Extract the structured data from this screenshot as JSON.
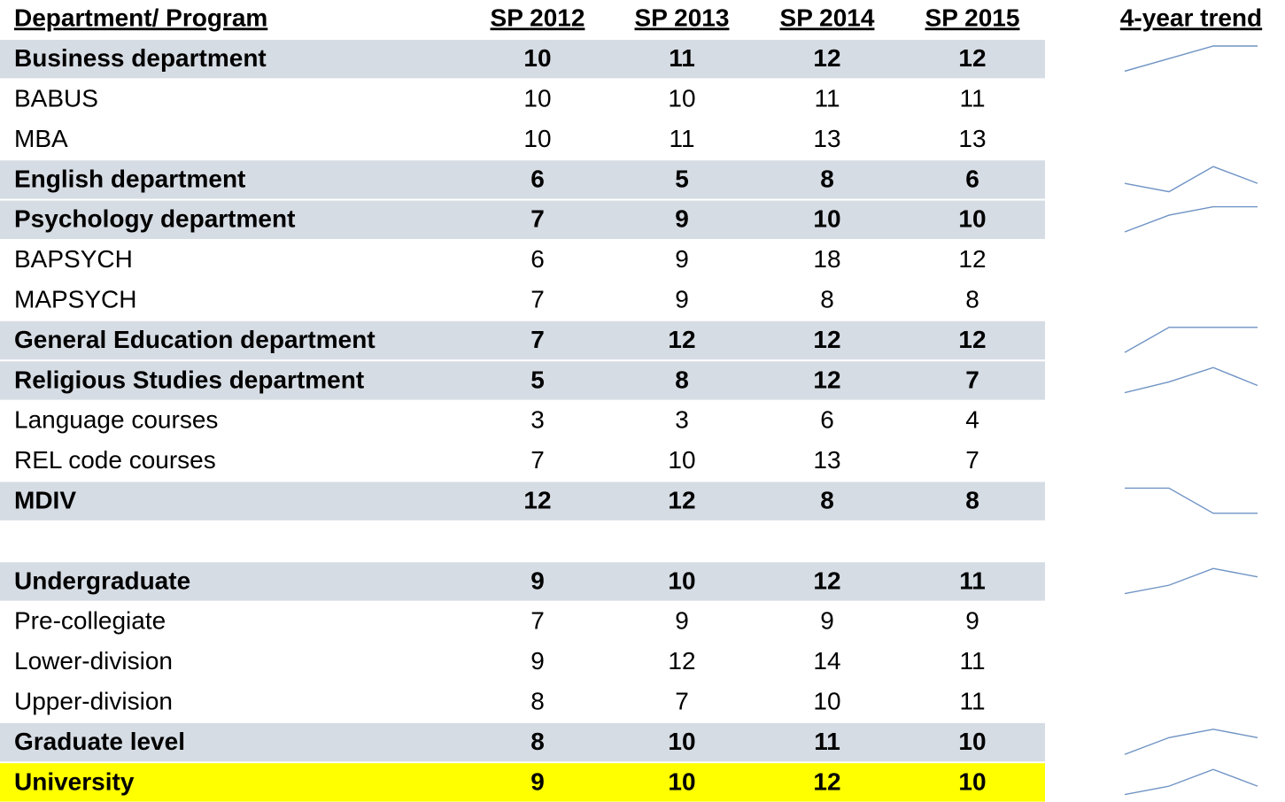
{
  "header": {
    "columns": [
      "Department/ Program",
      "SP 2012",
      "SP 2013",
      "SP 2014",
      "SP 2015"
    ],
    "trend_title": "4-year trend"
  },
  "band_color": "#d6dce4",
  "highlight_color": "#ffff00",
  "trend_color": "#6f93c4",
  "sections": [
    [
      {
        "label": "Business department",
        "values": [
          10,
          11,
          12,
          12
        ],
        "bold": true,
        "band": true,
        "trend": true
      },
      {
        "label": "BABUS",
        "values": [
          10,
          10,
          11,
          11
        ]
      },
      {
        "label": "MBA",
        "values": [
          10,
          11,
          13,
          13
        ]
      },
      {
        "label": "English department",
        "values": [
          6,
          5,
          8,
          6
        ],
        "bold": true,
        "band": true,
        "trend": true
      },
      {
        "label": "Psychology department",
        "values": [
          7,
          9,
          10,
          10
        ],
        "bold": true,
        "band": true,
        "trend": true
      },
      {
        "label": "BAPSYCH",
        "values": [
          6,
          9,
          18,
          12
        ]
      },
      {
        "label": "MAPSYCH",
        "values": [
          7,
          9,
          8,
          8
        ]
      },
      {
        "label": "General Education department",
        "values": [
          7,
          12,
          12,
          12
        ],
        "bold": true,
        "band": true,
        "trend": true
      },
      {
        "label": "Religious Studies department",
        "values": [
          5,
          8,
          12,
          7
        ],
        "bold": true,
        "band": true,
        "trend": true
      },
      {
        "label": "Language courses",
        "values": [
          3,
          3,
          6,
          4
        ]
      },
      {
        "label": "REL code courses",
        "values": [
          7,
          10,
          13,
          7
        ]
      },
      {
        "label": "MDIV",
        "values": [
          12,
          12,
          8,
          8
        ],
        "bold": true,
        "band": true,
        "trend": true
      }
    ],
    [
      {
        "label": "Undergraduate",
        "values": [
          9,
          10,
          12,
          11
        ],
        "bold": true,
        "band": true,
        "trend": true
      },
      {
        "label": "Pre-collegiate",
        "values": [
          7,
          9,
          9,
          9
        ]
      },
      {
        "label": "Lower-division",
        "values": [
          9,
          12,
          14,
          11
        ]
      },
      {
        "label": "Upper-division",
        "values": [
          8,
          7,
          10,
          11
        ]
      },
      {
        "label": "Graduate level",
        "values": [
          8,
          10,
          11,
          10
        ],
        "bold": true,
        "band": true,
        "trend": true
      },
      {
        "label": "University",
        "values": [
          9,
          10,
          12,
          10
        ],
        "bold": true,
        "highlight": true,
        "trend": true
      }
    ]
  ]
}
